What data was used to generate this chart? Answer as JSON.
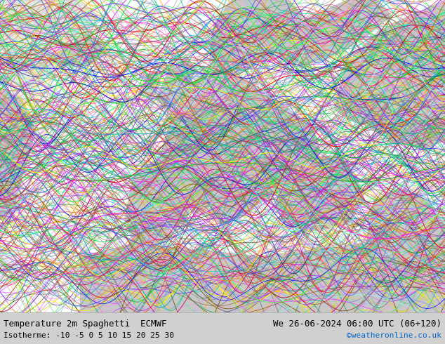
{
  "title_left": "Temperature 2m Spaghetti  ECMWF",
  "title_right": "We 26-06-2024 06:00 UTC (06+120)",
  "subtitle_left": "Isotherme: -10 -5 0 5 10 15 20 25 30",
  "subtitle_right": "©weatheronline.co.uk",
  "subtitle_right_color": "#0066cc",
  "bg_color": "#d8d8d8",
  "map_bg": "#ffffff",
  "bottom_bar_color": "#d0d0d0",
  "text_color": "#000000",
  "font_size_title": 9,
  "font_size_subtitle": 8,
  "fig_width": 6.34,
  "fig_height": 4.9,
  "dpi": 100,
  "spaghetti_colors": [
    "#808080",
    "#a0a0a0",
    "#606060",
    "#ff00ff",
    "#cc00cc",
    "#ff44ff",
    "#00bb00",
    "#00dd00",
    "#44ff44",
    "#ff0000",
    "#cc0000",
    "#ff4444",
    "#0000ff",
    "#0000cc",
    "#4444ff",
    "#00cccc",
    "#00aaaa",
    "#ff8800",
    "#ffaa00",
    "#8800ff",
    "#aa00ff",
    "#ffff00",
    "#dddd00",
    "#00ff88",
    "#00dd66",
    "#ff0088",
    "#dd0066",
    "#884400",
    "#aa6600",
    "#008844",
    "#00aa66",
    "#ff88ff",
    "#ffaaff",
    "#88ffff",
    "#aaffff",
    "#ff8888",
    "#ffaaaa",
    "#8888ff",
    "#aaaaff"
  ],
  "land_color": "#c8c8c8",
  "land_color2": "#b8c8b0",
  "sea_color": "#e8f0e8",
  "greenland_color": "#e0e8e0"
}
